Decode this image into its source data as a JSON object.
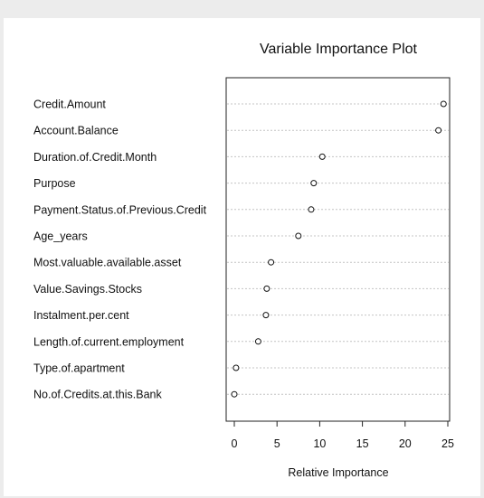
{
  "chart_data": {
    "type": "scatter",
    "title": "Variable Importance Plot",
    "xlabel": "Relative Importance",
    "ylabel": "",
    "xlim": [
      -1,
      26
    ],
    "xticks": [
      0,
      5,
      10,
      15,
      20,
      25
    ],
    "grid": "horizontal dotted lines",
    "categories": [
      "Credit.Amount",
      "Account.Balance",
      "Duration.of.Credit.Month",
      "Purpose",
      "Payment.Status.of.Previous.Credit",
      "Age_years",
      "Most.valuable.available.asset",
      "Value.Savings.Stocks",
      "Instalment.per.cent",
      "Length.of.current.employment",
      "Type.of.apartment",
      "No.of.Credits.at.this.Bank"
    ],
    "values": [
      24.5,
      23.9,
      10.3,
      9.3,
      9.0,
      7.5,
      4.3,
      3.8,
      3.7,
      2.8,
      0.2,
      0.0
    ]
  }
}
